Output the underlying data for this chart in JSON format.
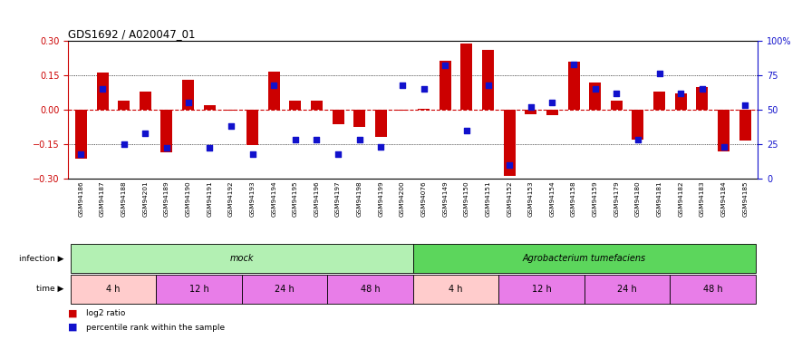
{
  "title": "GDS1692 / A020047_01",
  "samples": [
    "GSM94186",
    "GSM94187",
    "GSM94188",
    "GSM94201",
    "GSM94189",
    "GSM94190",
    "GSM94191",
    "GSM94192",
    "GSM94193",
    "GSM94194",
    "GSM94195",
    "GSM94196",
    "GSM94197",
    "GSM94198",
    "GSM94199",
    "GSM94200",
    "GSM94076",
    "GSM94149",
    "GSM94150",
    "GSM94151",
    "GSM94152",
    "GSM94153",
    "GSM94154",
    "GSM94158",
    "GSM94159",
    "GSM94179",
    "GSM94180",
    "GSM94181",
    "GSM94182",
    "GSM94183",
    "GSM94184",
    "GSM94185"
  ],
  "log2_ratio": [
    -0.215,
    0.16,
    0.04,
    0.08,
    -0.185,
    0.13,
    0.02,
    -0.005,
    -0.155,
    0.165,
    0.04,
    0.04,
    -0.065,
    -0.075,
    -0.12,
    -0.005,
    0.005,
    0.215,
    0.29,
    0.26,
    -0.29,
    -0.02,
    -0.025,
    0.21,
    0.12,
    0.04,
    -0.13,
    0.08,
    0.07,
    0.1,
    -0.18,
    -0.135
  ],
  "percentile_rank": [
    18,
    65,
    25,
    33,
    22,
    55,
    22,
    38,
    18,
    68,
    28,
    28,
    18,
    28,
    23,
    68,
    65,
    82,
    35,
    68,
    10,
    52,
    55,
    83,
    65,
    62,
    28,
    76,
    62,
    65,
    23,
    53
  ],
  "infection_groups": [
    {
      "label": "mock",
      "start": 0,
      "end": 16,
      "color": "#b3f0b3"
    },
    {
      "label": "Agrobacterium tumefaciens",
      "start": 16,
      "end": 32,
      "color": "#5cd65c"
    }
  ],
  "time_groups": [
    {
      "label": "4 h",
      "start": 0,
      "end": 4,
      "color": "#ffcccc"
    },
    {
      "label": "12 h",
      "start": 4,
      "end": 8,
      "color": "#e87de8"
    },
    {
      "label": "24 h",
      "start": 8,
      "end": 12,
      "color": "#e87de8"
    },
    {
      "label": "48 h",
      "start": 12,
      "end": 16,
      "color": "#e87de8"
    },
    {
      "label": "4 h",
      "start": 16,
      "end": 20,
      "color": "#ffcccc"
    },
    {
      "label": "12 h",
      "start": 20,
      "end": 24,
      "color": "#e87de8"
    },
    {
      "label": "24 h",
      "start": 24,
      "end": 28,
      "color": "#e87de8"
    },
    {
      "label": "48 h",
      "start": 28,
      "end": 32,
      "color": "#e87de8"
    }
  ],
  "ylim_left": [
    -0.3,
    0.3
  ],
  "ylim_right": [
    0,
    100
  ],
  "bar_color": "#cc0000",
  "dot_color": "#1111cc",
  "zero_line_color": "#cc0000",
  "bg_color": "white"
}
